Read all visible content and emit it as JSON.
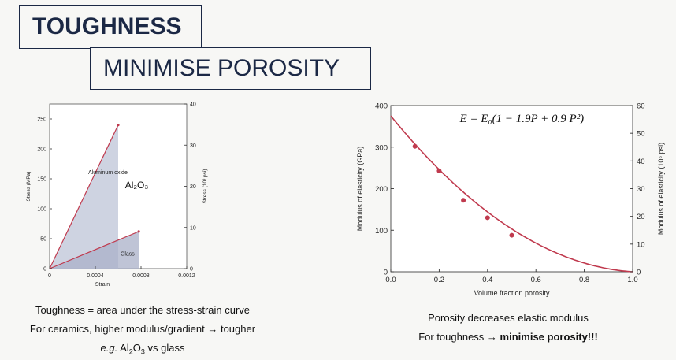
{
  "title": "TOUGHNESS",
  "subtitle": "MINIMISE POROSITY",
  "left_captions": {
    "line1": "Toughness = area under the stress-strain curve",
    "line2": "For ceramics, higher modulus/gradient → tougher",
    "line3_prefix": "e.g.",
    "line3_rest": "vs glass"
  },
  "right_captions": {
    "line1": "Porosity decreases elastic modulus",
    "line2_prefix": "For toughness →",
    "line2_bold": "minimise porosity!!!"
  },
  "colors": {
    "curve": "#c03a4e",
    "fill": "#c6cbdc",
    "title": "#1b2845"
  },
  "chart_data": [
    {
      "type": "line",
      "xlabel": "Strain",
      "ylabel": "Stress (MPa)",
      "y2label": "Stress (10³ psi)",
      "xlim": [
        0,
        0.0012
      ],
      "ylim": [
        0,
        275
      ],
      "y2lim": [
        0,
        40
      ],
      "xticks": [
        "0",
        "0.0004",
        "0.0008",
        "0.0012"
      ],
      "yticks": [
        "0",
        "50",
        "100",
        "150",
        "200",
        "250"
      ],
      "y2ticks": [
        "0",
        "10",
        "20",
        "30",
        "40"
      ],
      "annotations": [
        "Aluminum oxide",
        "Al₂O₃",
        "Glass"
      ],
      "series": [
        {
          "name": "Aluminum oxide",
          "x": [
            0,
            0.0006
          ],
          "y": [
            0,
            240
          ]
        },
        {
          "name": "Glass",
          "x": [
            0,
            0.00078
          ],
          "y": [
            0,
            62
          ]
        }
      ]
    },
    {
      "type": "scatter",
      "xlabel": "Volume fraction porosity",
      "ylabel": "Modulus of elasticity (GPa)",
      "y2label": "Modulus of elasticity (10⁶ psi)",
      "xlim": [
        0,
        1.0
      ],
      "ylim": [
        0,
        400
      ],
      "y2lim": [
        0,
        60
      ],
      "xticks": [
        "0.0",
        "0.2",
        "0.4",
        "0.6",
        "0.8",
        "1.0"
      ],
      "yticks": [
        "0",
        "100",
        "200",
        "300",
        "400"
      ],
      "y2ticks": [
        "0",
        "10",
        "20",
        "30",
        "40",
        "50",
        "60"
      ],
      "equation": "E = E₀(1 − 1.9P + 0.9 P²)",
      "E0": 375,
      "points": {
        "x": [
          0.1,
          0.2,
          0.3,
          0.4,
          0.5
        ],
        "y": [
          302,
          243,
          172,
          130,
          88
        ]
      }
    }
  ]
}
